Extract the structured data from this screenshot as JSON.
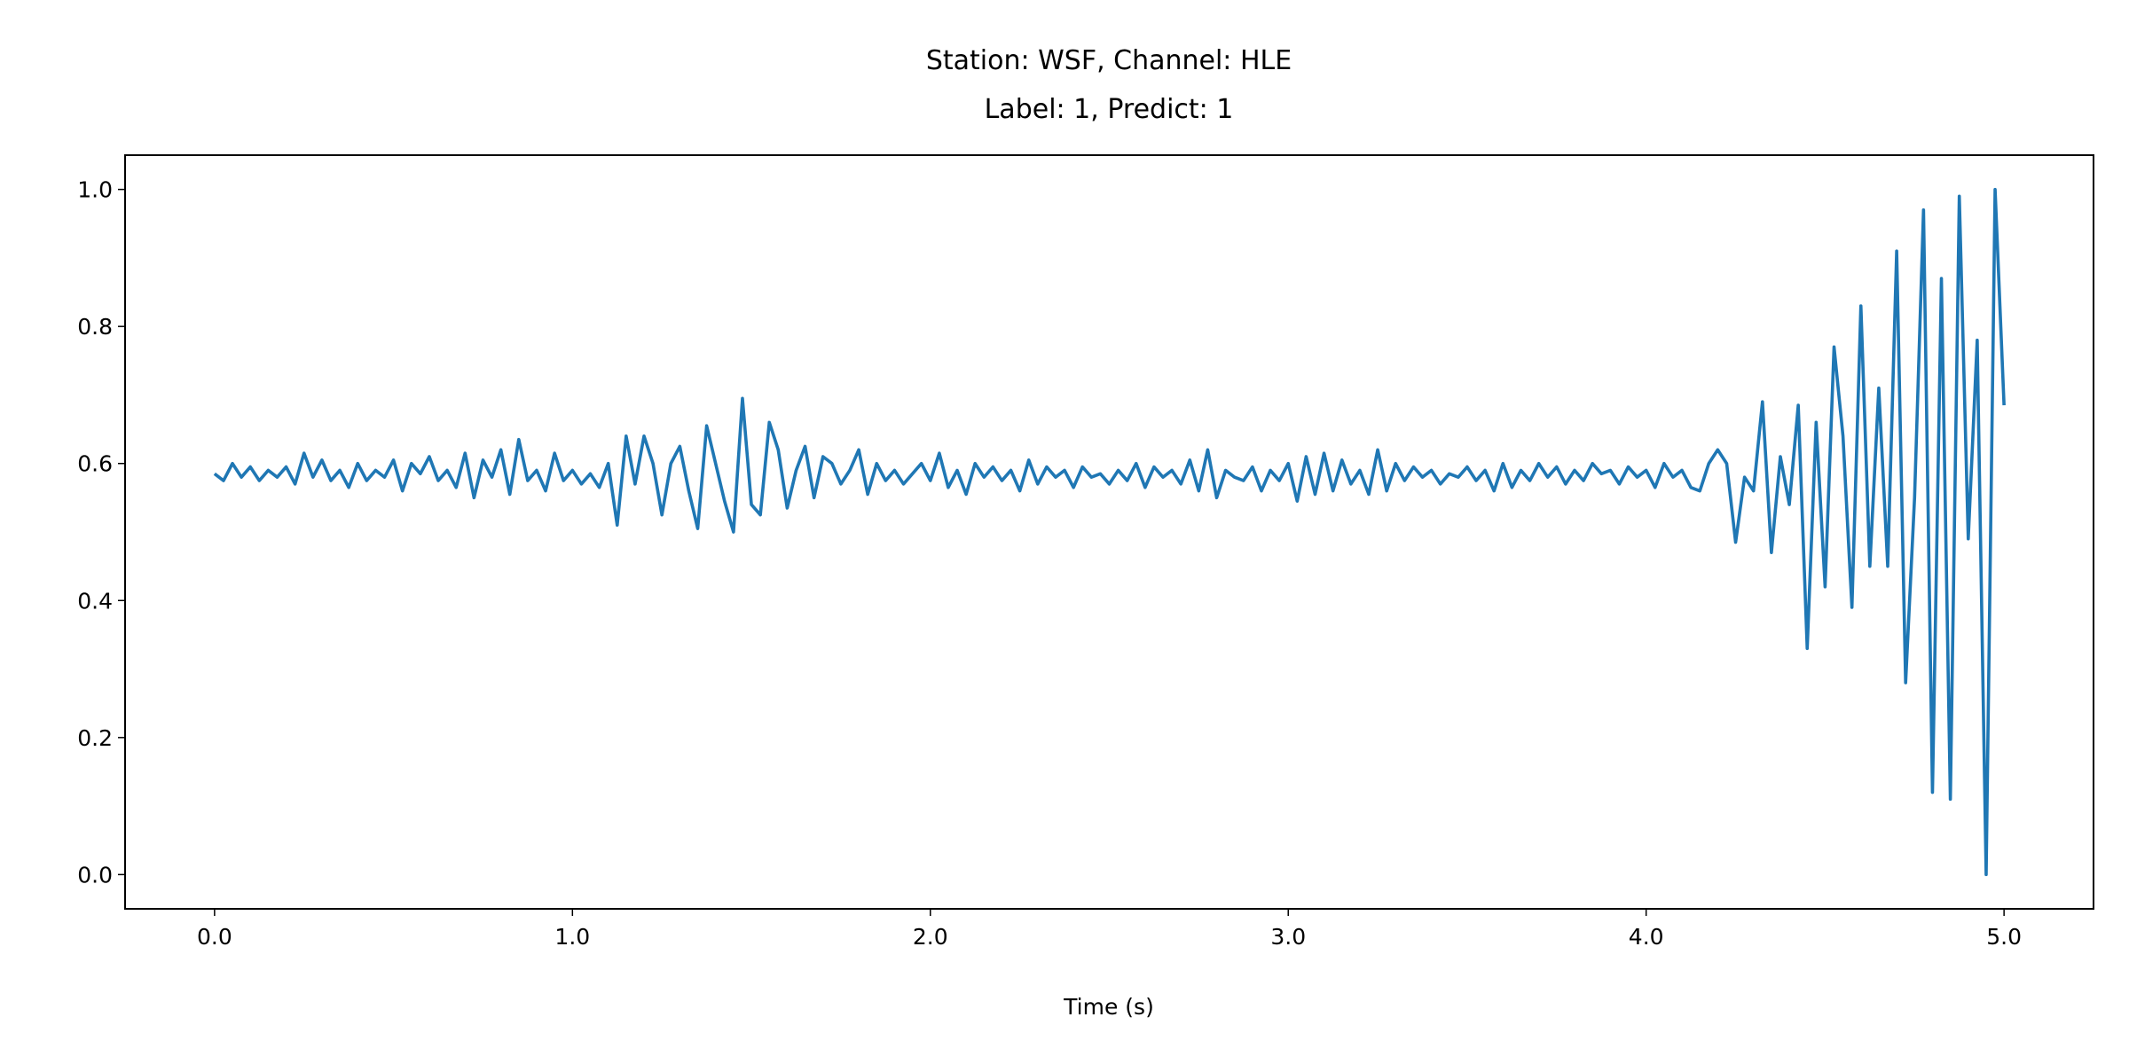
{
  "chart_data": {
    "type": "line",
    "title": "Station: WSF, Channel: HLE",
    "subtitle": "Label: 1, Predict: 1",
    "xlabel": "Time (s)",
    "color": "#1f77b4",
    "grid": false,
    "xlim": [
      -0.25,
      5.25
    ],
    "ylim": [
      -0.05,
      1.05
    ],
    "xticks": [
      {
        "value": 0,
        "label": "0.0"
      },
      {
        "value": 1,
        "label": "1.0"
      },
      {
        "value": 2,
        "label": "2.0"
      },
      {
        "value": 3,
        "label": "3.0"
      },
      {
        "value": 4,
        "label": "4.0"
      },
      {
        "value": 5,
        "label": "5.0"
      }
    ],
    "yticks": [
      {
        "value": 0,
        "label": "0.0"
      },
      0.2,
      0.4,
      0.6,
      0.8,
      {
        "value": 1,
        "label": "1.0"
      }
    ],
    "x": [
      0,
      0.025,
      0.05,
      0.075,
      0.1,
      0.125,
      0.15,
      0.175,
      0.2,
      0.225,
      0.25,
      0.275,
      0.3,
      0.325,
      0.35,
      0.375,
      0.4,
      0.425,
      0.45,
      0.475,
      0.5,
      0.525,
      0.55,
      0.575,
      0.6,
      0.625,
      0.65,
      0.675,
      0.7,
      0.725,
      0.75,
      0.775,
      0.8,
      0.825,
      0.85,
      0.875,
      0.9,
      0.925,
      0.95,
      0.975,
      1,
      1.025,
      1.05,
      1.075,
      1.1,
      1.125,
      1.15,
      1.175,
      1.2,
      1.225,
      1.25,
      1.275,
      1.3,
      1.325,
      1.35,
      1.375,
      1.4,
      1.425,
      1.45,
      1.475,
      1.5,
      1.525,
      1.55,
      1.575,
      1.6,
      1.625,
      1.65,
      1.675,
      1.7,
      1.725,
      1.75,
      1.775,
      1.8,
      1.825,
      1.85,
      1.875,
      1.9,
      1.925,
      1.95,
      1.975,
      2,
      2.025,
      2.05,
      2.075,
      2.1,
      2.125,
      2.15,
      2.175,
      2.2,
      2.225,
      2.25,
      2.275,
      2.3,
      2.325,
      2.35,
      2.375,
      2.4,
      2.425,
      2.45,
      2.475,
      2.5,
      2.525,
      2.55,
      2.575,
      2.6,
      2.625,
      2.65,
      2.675,
      2.7,
      2.725,
      2.75,
      2.775,
      2.8,
      2.825,
      2.85,
      2.875,
      2.9,
      2.925,
      2.95,
      2.975,
      3,
      3.025,
      3.05,
      3.075,
      3.1,
      3.125,
      3.15,
      3.175,
      3.2,
      3.225,
      3.25,
      3.275,
      3.3,
      3.325,
      3.35,
      3.375,
      3.4,
      3.425,
      3.45,
      3.475,
      3.5,
      3.525,
      3.55,
      3.575,
      3.6,
      3.625,
      3.65,
      3.675,
      3.7,
      3.725,
      3.75,
      3.775,
      3.8,
      3.825,
      3.85,
      3.875,
      3.9,
      3.925,
      3.95,
      3.975,
      4,
      4.025,
      4.05,
      4.075,
      4.1,
      4.125,
      4.15,
      4.175,
      4.2,
      4.225,
      4.25,
      4.275,
      4.3,
      4.325,
      4.35,
      4.375,
      4.4,
      4.425,
      4.45,
      4.475,
      4.5,
      4.525,
      4.55,
      4.575,
      4.6,
      4.625,
      4.65,
      4.675,
      4.7,
      4.725,
      4.75,
      4.775,
      4.8,
      4.825,
      4.85,
      4.875,
      4.9,
      4.925,
      4.95,
      4.975,
      5
    ],
    "values": [
      0.585,
      0.575,
      0.6,
      0.58,
      0.595,
      0.575,
      0.59,
      0.58,
      0.595,
      0.57,
      0.615,
      0.58,
      0.605,
      0.575,
      0.59,
      0.565,
      0.6,
      0.575,
      0.59,
      0.58,
      0.605,
      0.56,
      0.6,
      0.585,
      0.61,
      0.575,
      0.59,
      0.565,
      0.615,
      0.55,
      0.605,
      0.58,
      0.62,
      0.555,
      0.635,
      0.575,
      0.59,
      0.56,
      0.615,
      0.575,
      0.59,
      0.57,
      0.585,
      0.565,
      0.6,
      0.51,
      0.64,
      0.57,
      0.64,
      0.6,
      0.525,
      0.6,
      0.625,
      0.56,
      0.505,
      0.655,
      0.6,
      0.545,
      0.5,
      0.695,
      0.54,
      0.525,
      0.66,
      0.62,
      0.535,
      0.59,
      0.625,
      0.55,
      0.61,
      0.6,
      0.57,
      0.59,
      0.62,
      0.555,
      0.6,
      0.575,
      0.59,
      0.57,
      0.585,
      0.6,
      0.575,
      0.615,
      0.565,
      0.59,
      0.555,
      0.6,
      0.58,
      0.595,
      0.575,
      0.59,
      0.56,
      0.605,
      0.57,
      0.595,
      0.58,
      0.59,
      0.565,
      0.595,
      0.58,
      0.585,
      0.57,
      0.59,
      0.575,
      0.6,
      0.565,
      0.595,
      0.58,
      0.59,
      0.57,
      0.605,
      0.56,
      0.62,
      0.55,
      0.59,
      0.58,
      0.575,
      0.595,
      0.56,
      0.59,
      0.575,
      0.6,
      0.545,
      0.61,
      0.555,
      0.615,
      0.56,
      0.605,
      0.57,
      0.59,
      0.555,
      0.62,
      0.56,
      0.6,
      0.575,
      0.595,
      0.58,
      0.59,
      0.57,
      0.585,
      0.58,
      0.595,
      0.575,
      0.59,
      0.56,
      0.6,
      0.565,
      0.59,
      0.575,
      0.6,
      0.58,
      0.595,
      0.57,
      0.59,
      0.575,
      0.6,
      0.585,
      0.59,
      0.57,
      0.595,
      0.58,
      0.59,
      0.565,
      0.6,
      0.58,
      0.59,
      0.565,
      0.56,
      0.6,
      0.62,
      0.6,
      0.485,
      0.58,
      0.56,
      0.69,
      0.47,
      0.61,
      0.54,
      0.685,
      0.33,
      0.66,
      0.42,
      0.77,
      0.64,
      0.39,
      0.83,
      0.45,
      0.71,
      0.45,
      0.91,
      0.28,
      0.55,
      0.97,
      0.12,
      0.87,
      0.11,
      0.99,
      0.49,
      0.78,
      0,
      1,
      0.685
    ]
  }
}
